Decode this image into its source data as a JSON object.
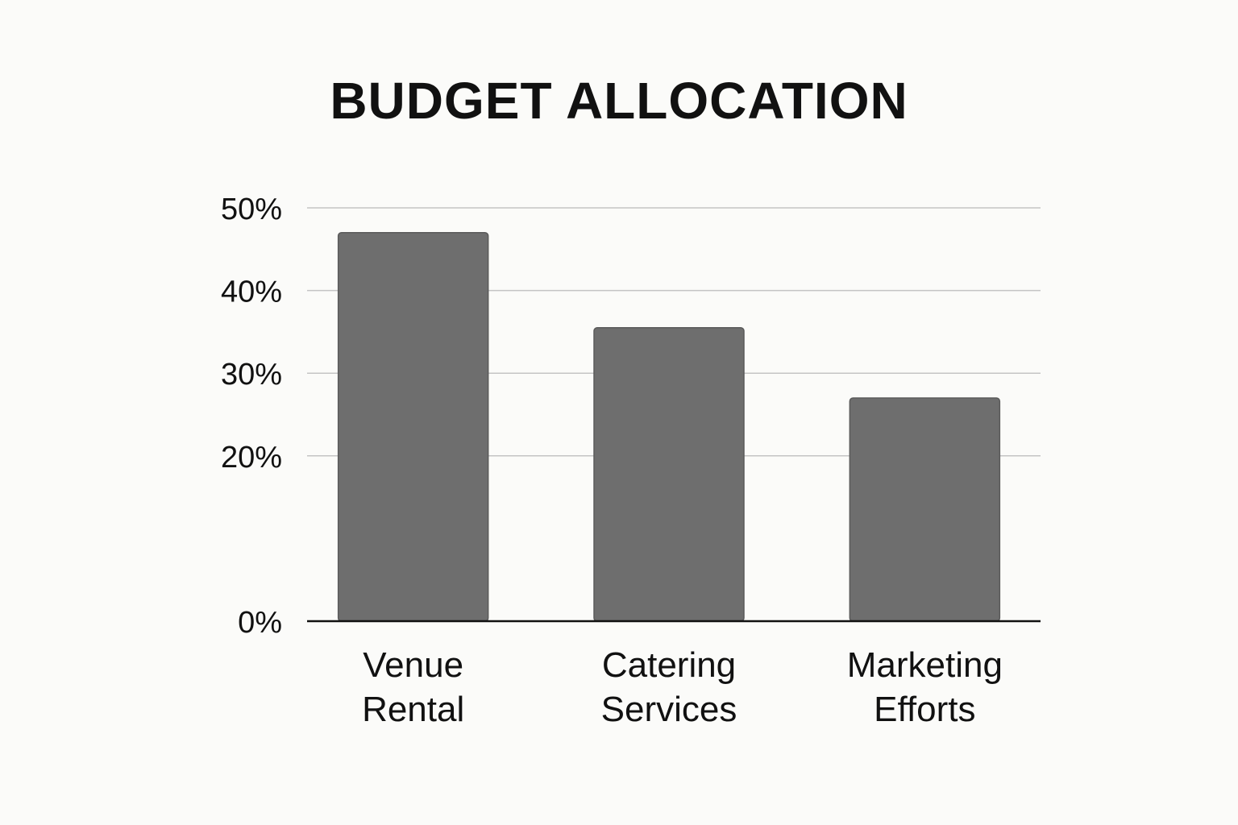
{
  "chart_data": {
    "type": "bar",
    "title": "BUDGET ALLOCATION",
    "categories": [
      [
        "Venue",
        "Rental"
      ],
      [
        "Catering",
        "Services"
      ],
      [
        "Marketing",
        "Efforts"
      ]
    ],
    "values": [
      47,
      35.5,
      27
    ],
    "y_ticks": [
      {
        "value": 0,
        "label": "0%"
      },
      {
        "value": 20,
        "label": "20%"
      },
      {
        "value": 30,
        "label": "30%"
      },
      {
        "value": 40,
        "label": "40%"
      },
      {
        "value": 50,
        "label": "50%"
      }
    ],
    "ylim": [
      0,
      50
    ],
    "grid": true,
    "legend": "none",
    "colors": {
      "bar": "#6e6e6e",
      "bar_stroke": "#5a5a5a",
      "grid": "#c4c4c4",
      "axis": "#111111",
      "background": "#fbfbf9"
    }
  }
}
